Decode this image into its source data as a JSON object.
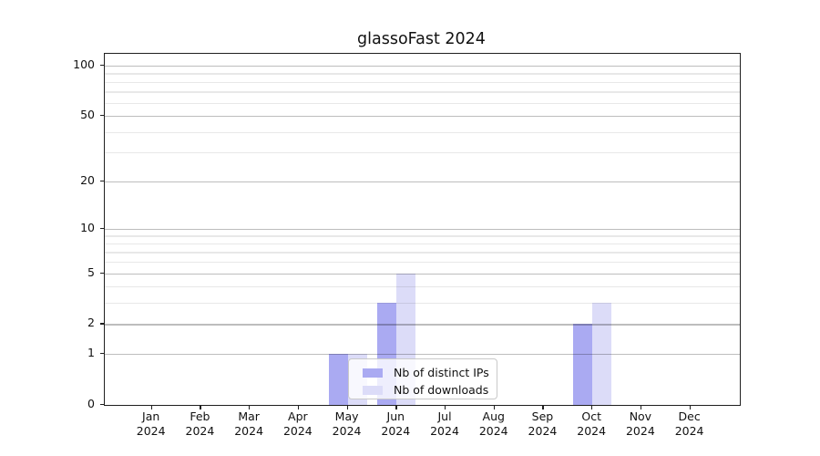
{
  "chart_data": {
    "type": "bar",
    "title": "glassoFast 2024",
    "categories": [
      "Jan 2024",
      "Feb 2024",
      "Mar 2024",
      "Apr 2024",
      "May 2024",
      "Jun 2024",
      "Jul 2024",
      "Aug 2024",
      "Sep 2024",
      "Oct 2024",
      "Nov 2024",
      "Dec 2024"
    ],
    "series": [
      {
        "name": "Nb of distinct IPs",
        "color": "#aaaaf2",
        "values": [
          0,
          0,
          0,
          0,
          1,
          3,
          0,
          0,
          0,
          2,
          0,
          0
        ]
      },
      {
        "name": "Nb of downloads",
        "color": "#dcdcf8",
        "values": [
          0,
          0,
          0,
          0,
          1,
          5,
          0,
          0,
          0,
          3,
          0,
          0
        ]
      }
    ],
    "y_scale": "log1p",
    "y_tick_values": [
      0,
      1,
      2,
      5,
      10,
      20,
      50,
      100
    ],
    "y_minor_gridline_values": [
      3,
      4,
      6,
      7,
      8,
      9,
      30,
      40,
      60,
      70,
      80,
      90
    ],
    "ylim": [
      0,
      118
    ],
    "grid": true,
    "grid_over_bars": true,
    "legend_position": "lower-center-left",
    "colors": {
      "axis": "#1f1f1f",
      "major_grid": "#bdbdbd",
      "minor_grid": "#e8e8e8",
      "legend_border": "#c9c9c9",
      "background": "#ffffff"
    }
  }
}
